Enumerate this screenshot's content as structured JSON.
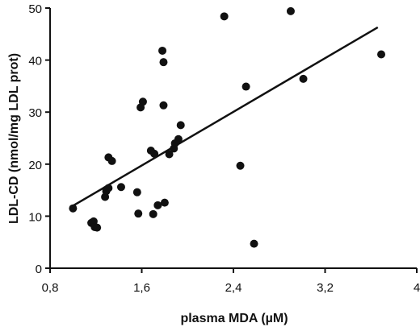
{
  "chart_data": {
    "type": "scatter",
    "title": "",
    "xlabel": "plasma MDA (µM)",
    "ylabel": "LDL-CD (nmol/mg LDL prot)",
    "xlim": [
      0.8,
      4.0
    ],
    "ylim": [
      0,
      50
    ],
    "x_ticks": [
      "0,8",
      "1,6",
      "2,4",
      "3,2",
      "4"
    ],
    "y_ticks": [
      "0",
      "10",
      "20",
      "30",
      "40",
      "50"
    ],
    "grid": false,
    "legend": "none",
    "marker_color": "#111111",
    "points": [
      {
        "x": 1.0,
        "y": 11.5
      },
      {
        "x": 1.16,
        "y": 8.7
      },
      {
        "x": 1.18,
        "y": 9.0
      },
      {
        "x": 1.19,
        "y": 7.9
      },
      {
        "x": 1.21,
        "y": 7.8
      },
      {
        "x": 1.28,
        "y": 13.7
      },
      {
        "x": 1.29,
        "y": 14.8
      },
      {
        "x": 1.31,
        "y": 15.4
      },
      {
        "x": 1.31,
        "y": 21.3
      },
      {
        "x": 1.34,
        "y": 20.6
      },
      {
        "x": 1.42,
        "y": 15.6
      },
      {
        "x": 1.56,
        "y": 14.6
      },
      {
        "x": 1.57,
        "y": 10.5
      },
      {
        "x": 1.59,
        "y": 30.9
      },
      {
        "x": 1.61,
        "y": 32.0
      },
      {
        "x": 1.68,
        "y": 22.6
      },
      {
        "x": 1.7,
        "y": 10.4
      },
      {
        "x": 1.71,
        "y": 22.0
      },
      {
        "x": 1.74,
        "y": 12.1
      },
      {
        "x": 1.78,
        "y": 41.8
      },
      {
        "x": 1.79,
        "y": 39.6
      },
      {
        "x": 1.79,
        "y": 31.3
      },
      {
        "x": 1.8,
        "y": 12.6
      },
      {
        "x": 1.84,
        "y": 21.9
      },
      {
        "x": 1.88,
        "y": 23.0
      },
      {
        "x": 1.89,
        "y": 24.0
      },
      {
        "x": 1.92,
        "y": 24.8
      },
      {
        "x": 1.94,
        "y": 27.5
      },
      {
        "x": 2.32,
        "y": 48.4
      },
      {
        "x": 2.46,
        "y": 19.7
      },
      {
        "x": 2.51,
        "y": 34.9
      },
      {
        "x": 2.58,
        "y": 4.7
      },
      {
        "x": 2.9,
        "y": 49.4
      },
      {
        "x": 3.01,
        "y": 36.4
      },
      {
        "x": 3.69,
        "y": 41.1
      }
    ],
    "regression_line": {
      "x": [
        1.0,
        3.66
      ],
      "y": [
        12.0,
        46.3
      ]
    }
  }
}
